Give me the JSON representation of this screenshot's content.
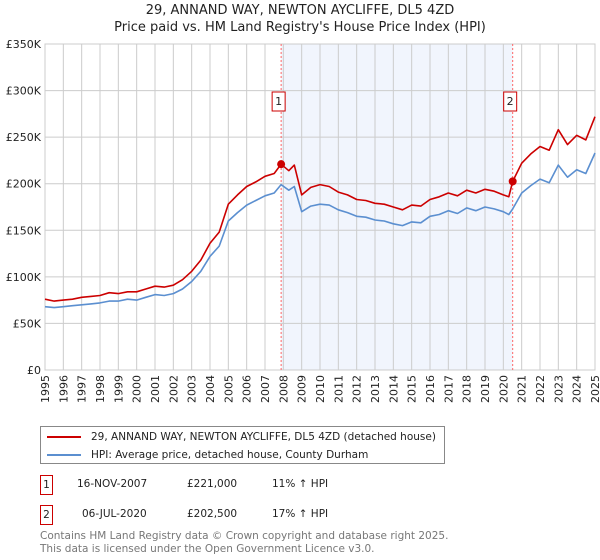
{
  "chart_data": {
    "type": "line",
    "title": "29, ANNAND WAY, NEWTON AYCLIFFE, DL5 4ZD",
    "subtitle": "Price paid vs. HM Land Registry's House Price Index (HPI)",
    "xlim": [
      1995,
      2025
    ],
    "ylim": [
      0,
      350000
    ],
    "x_ticks": [
      "1995",
      "1996",
      "1997",
      "1998",
      "1999",
      "2000",
      "2001",
      "2002",
      "2003",
      "2004",
      "2005",
      "2006",
      "2007",
      "2008",
      "2009",
      "2010",
      "2011",
      "2012",
      "2013",
      "2014",
      "2015",
      "2016",
      "2017",
      "2018",
      "2019",
      "2020",
      "2021",
      "2022",
      "2023",
      "2024",
      "2025"
    ],
    "y_ticks": [
      {
        "v": 0,
        "label": "£0"
      },
      {
        "v": 50000,
        "label": "£50K"
      },
      {
        "v": 100000,
        "label": "£100K"
      },
      {
        "v": 150000,
        "label": "£150K"
      },
      {
        "v": 200000,
        "label": "£200K"
      },
      {
        "v": 250000,
        "label": "£250K"
      },
      {
        "v": 300000,
        "label": "£300K"
      },
      {
        "v": 350000,
        "label": "£350K"
      }
    ],
    "grid": true,
    "shaded_range": [
      2007.88,
      2020.51
    ],
    "series": [
      {
        "name": "29, ANNAND WAY, NEWTON AYCLIFFE, DL5 4ZD (detached house)",
        "color": "#cc0000",
        "x": [
          1995,
          1995.5,
          1996,
          1996.5,
          1997,
          1997.5,
          1998,
          1998.5,
          1999,
          1999.5,
          2000,
          2000.5,
          2001,
          2001.5,
          2002,
          2002.5,
          2003,
          2003.5,
          2004,
          2004.5,
          2005,
          2005.5,
          2006,
          2006.5,
          2007,
          2007.5,
          2007.88,
          2008.3,
          2008.6,
          2009,
          2009.5,
          2010,
          2010.5,
          2011,
          2011.5,
          2012,
          2012.5,
          2013,
          2013.5,
          2014,
          2014.5,
          2015,
          2015.5,
          2016,
          2016.5,
          2017,
          2017.5,
          2018,
          2018.5,
          2019,
          2019.5,
          2020,
          2020.3,
          2020.51,
          2021,
          2021.5,
          2022,
          2022.5,
          2023,
          2023.5,
          2024,
          2024.5,
          2025
        ],
        "y": [
          76000,
          74000,
          75000,
          76000,
          78000,
          79000,
          80000,
          83000,
          82000,
          84000,
          84000,
          87000,
          90000,
          89000,
          91000,
          97000,
          106000,
          118000,
          136000,
          148000,
          178000,
          188000,
          197000,
          202000,
          208000,
          211000,
          221000,
          214000,
          220000,
          188000,
          196000,
          199000,
          197000,
          191000,
          188000,
          183000,
          182000,
          179000,
          178000,
          175000,
          172000,
          177000,
          176000,
          183000,
          186000,
          190000,
          187000,
          193000,
          190000,
          194000,
          192000,
          188000,
          186000,
          202500,
          222000,
          232000,
          240000,
          236000,
          258000,
          242000,
          252000,
          247000,
          272000
        ]
      },
      {
        "name": "HPI: Average price, detached house, County Durham",
        "color": "#5b8fd0",
        "x": [
          1995,
          1995.5,
          1996,
          1996.5,
          1997,
          1997.5,
          1998,
          1998.5,
          1999,
          1999.5,
          2000,
          2000.5,
          2001,
          2001.5,
          2002,
          2002.5,
          2003,
          2003.5,
          2004,
          2004.5,
          2005,
          2005.5,
          2006,
          2006.5,
          2007,
          2007.5,
          2007.88,
          2008.3,
          2008.6,
          2009,
          2009.5,
          2010,
          2010.5,
          2011,
          2011.5,
          2012,
          2012.5,
          2013,
          2013.5,
          2014,
          2014.5,
          2015,
          2015.5,
          2016,
          2016.5,
          2017,
          2017.5,
          2018,
          2018.5,
          2019,
          2019.5,
          2020,
          2020.3,
          2020.51,
          2021,
          2021.5,
          2022,
          2022.5,
          2023,
          2023.5,
          2024,
          2024.5,
          2025
        ],
        "y": [
          68000,
          67000,
          68000,
          69000,
          70000,
          71000,
          72000,
          74000,
          74000,
          76000,
          75000,
          78000,
          81000,
          80000,
          82000,
          87000,
          95000,
          106000,
          122000,
          133000,
          160000,
          169000,
          177000,
          182000,
          187000,
          190000,
          199000,
          193000,
          197000,
          170000,
          176000,
          178000,
          177000,
          172000,
          169000,
          165000,
          164000,
          161000,
          160000,
          157000,
          155000,
          159000,
          158000,
          165000,
          167000,
          171000,
          168000,
          174000,
          171000,
          175000,
          173000,
          170000,
          167000,
          173000,
          190000,
          198000,
          205000,
          201000,
          220000,
          207000,
          215000,
          211000,
          233000
        ]
      }
    ],
    "annotations": [
      {
        "id": "1",
        "x": 2007.88,
        "y": 221000
      },
      {
        "id": "2",
        "x": 2020.51,
        "y": 202500
      }
    ]
  },
  "legend": {
    "items": [
      "29, ANNAND WAY, NEWTON AYCLIFFE, DL5 4ZD (detached house)",
      "HPI: Average price, detached house, County Durham"
    ]
  },
  "transactions": [
    {
      "id": "1",
      "date": "16-NOV-2007",
      "price": "£221,000",
      "hpi": "11% ↑ HPI"
    },
    {
      "id": "2",
      "date": "06-JUL-2020",
      "price": "£202,500",
      "hpi": "17% ↑ HPI"
    }
  ],
  "footer": {
    "line1": "Contains HM Land Registry data © Crown copyright and database right 2025.",
    "line2": "This data is licensed under the Open Government Licence v3.0."
  }
}
